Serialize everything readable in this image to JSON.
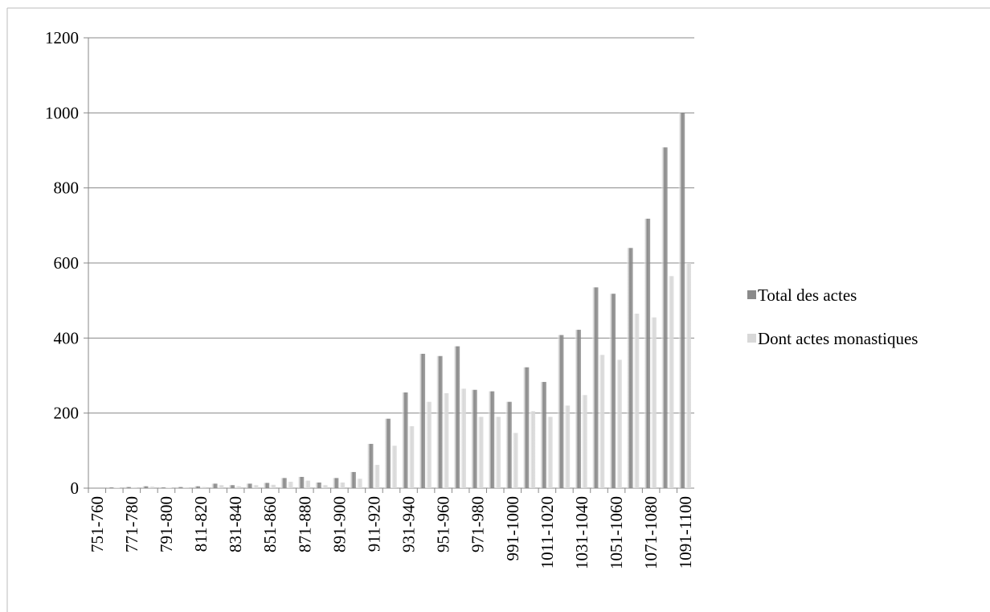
{
  "chart_data": {
    "type": "bar",
    "categories": [
      "751-760",
      null,
      "771-780",
      null,
      "791-800",
      null,
      "811-820",
      null,
      "831-840",
      null,
      "851-860",
      null,
      "871-880",
      null,
      "891-900",
      null,
      "911-920",
      null,
      "931-940",
      null,
      "951-960",
      null,
      "971-980",
      null,
      "991-1000",
      null,
      "1011-1020",
      null,
      "1031-1040",
      null,
      "1051-1060",
      null,
      "1071-1080",
      null,
      "1091-1100"
    ],
    "series": [
      {
        "name": "Total des actes",
        "color": "#8a8a8a",
        "values": [
          0,
          2,
          3,
          5,
          2,
          3,
          5,
          12,
          8,
          12,
          14,
          27,
          30,
          15,
          27,
          43,
          118,
          185,
          255,
          358,
          352,
          378,
          262,
          258,
          230,
          322,
          283,
          408,
          422,
          535,
          518,
          640,
          718,
          908,
          1000
        ]
      },
      {
        "name": "Dont actes monastiques",
        "color": "#d8d8d8",
        "values": [
          0,
          1,
          2,
          4,
          1,
          2,
          3,
          8,
          5,
          8,
          9,
          17,
          20,
          8,
          15,
          25,
          62,
          113,
          165,
          230,
          253,
          265,
          190,
          190,
          147,
          205,
          190,
          220,
          248,
          355,
          342,
          465,
          455,
          565,
          600
        ]
      }
    ],
    "ylim": [
      0,
      1200
    ],
    "yticks": [
      0,
      200,
      400,
      600,
      800,
      1000,
      1200
    ],
    "grid": true,
    "legend": "right"
  }
}
